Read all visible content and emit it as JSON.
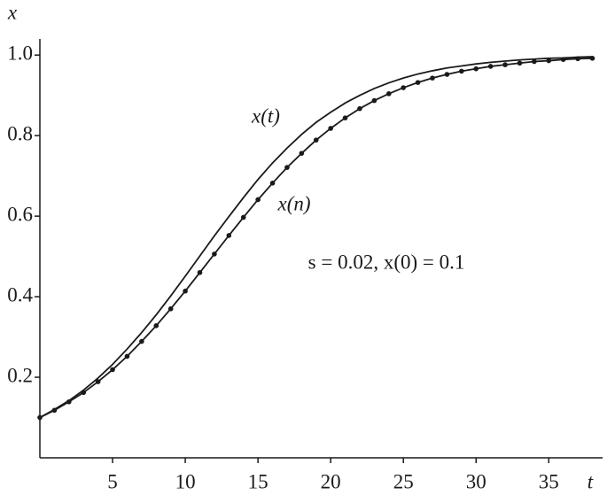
{
  "chart_data": {
    "type": "line",
    "x_label": "t",
    "y_label": "x",
    "x": [
      0,
      1,
      2,
      3,
      4,
      5,
      6,
      7,
      8,
      9,
      10,
      11,
      12,
      13,
      14,
      15,
      16,
      17,
      18,
      19,
      20,
      21,
      22,
      23,
      24,
      25,
      26,
      27,
      28,
      29,
      30,
      31,
      32,
      33,
      34,
      35,
      36,
      37,
      38
    ],
    "series": [
      {
        "name": "x(t)",
        "color": "#1a1a1a",
        "marker": "none",
        "values": [
          0.1,
          0.12,
          0.142,
          0.168,
          0.198,
          0.232,
          0.27,
          0.311,
          0.355,
          0.402,
          0.451,
          0.501,
          0.551,
          0.599,
          0.646,
          0.691,
          0.732,
          0.769,
          0.803,
          0.833,
          0.858,
          0.881,
          0.9,
          0.917,
          0.931,
          0.943,
          0.953,
          0.961,
          0.968,
          0.973,
          0.978,
          0.982,
          0.985,
          0.988,
          0.99,
          0.992,
          0.993,
          0.995,
          0.996
        ]
      },
      {
        "name": "x(n)",
        "color": "#1a1a1a",
        "marker": "circle",
        "values": [
          0.1,
          0.118,
          0.139,
          0.162,
          0.189,
          0.219,
          0.252,
          0.289,
          0.328,
          0.37,
          0.414,
          0.46,
          0.506,
          0.552,
          0.597,
          0.641,
          0.682,
          0.721,
          0.756,
          0.789,
          0.818,
          0.844,
          0.867,
          0.887,
          0.904,
          0.919,
          0.932,
          0.943,
          0.952,
          0.96,
          0.966,
          0.972,
          0.976,
          0.98,
          0.984,
          0.986,
          0.989,
          0.991,
          0.992
        ]
      }
    ],
    "annotations": [
      "s = 0.02, x(0) = 0.1"
    ],
    "xlim": [
      0,
      38.7
    ],
    "ylim": [
      0,
      1.04
    ],
    "xticks": [
      5,
      10,
      15,
      20,
      25,
      30,
      35
    ],
    "yticks": [
      0.2,
      0.4,
      0.6,
      0.8,
      {
        "value": 1,
        "label": "1.0"
      }
    ],
    "grid": false
  }
}
